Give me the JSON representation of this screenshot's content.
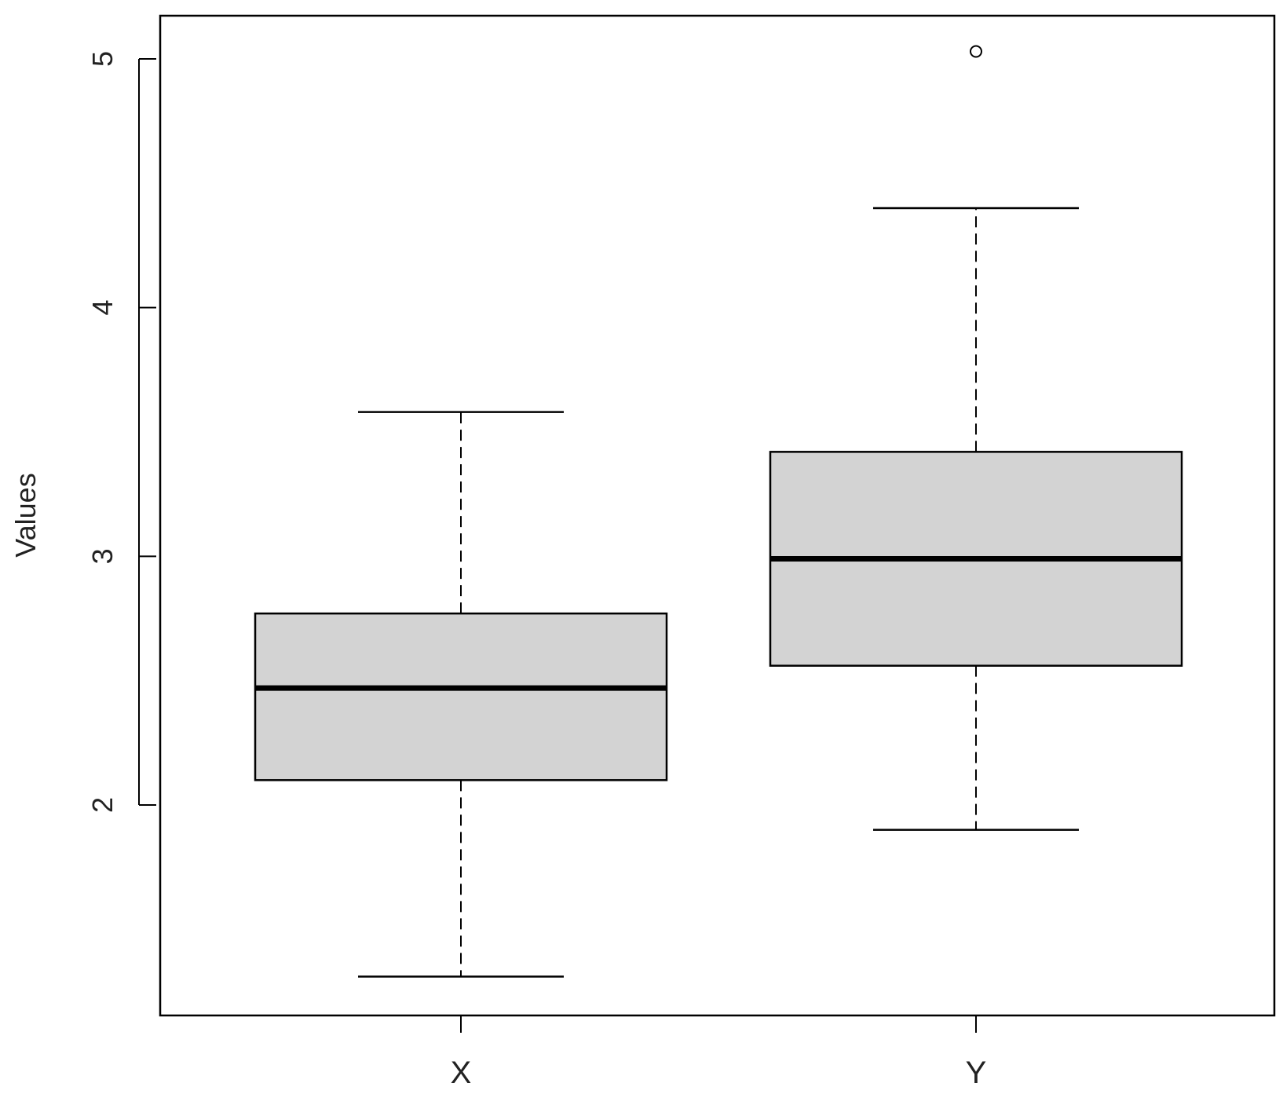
{
  "chart_data": {
    "type": "boxplot",
    "title": "",
    "xlabel": "",
    "ylabel": "Values",
    "ylim": [
      1.16,
      5.17
    ],
    "yticks": [
      2,
      3,
      4,
      5
    ],
    "yticklabels": [
      "2",
      "3",
      "4",
      "5"
    ],
    "grid": false,
    "legend": "none",
    "box_fill": "#d3d3d3",
    "line_color": "#000000",
    "categories": [
      "X",
      "Y"
    ],
    "boxes": [
      {
        "category": "X",
        "whisker_low": 1.31,
        "q1": 2.1,
        "median": 2.47,
        "q3": 2.77,
        "whisker_high": 3.58,
        "outliers": []
      },
      {
        "category": "Y",
        "whisker_low": 1.9,
        "q1": 2.56,
        "median": 2.99,
        "q3": 3.42,
        "whisker_high": 4.4,
        "outliers": [
          5.03
        ]
      }
    ]
  }
}
